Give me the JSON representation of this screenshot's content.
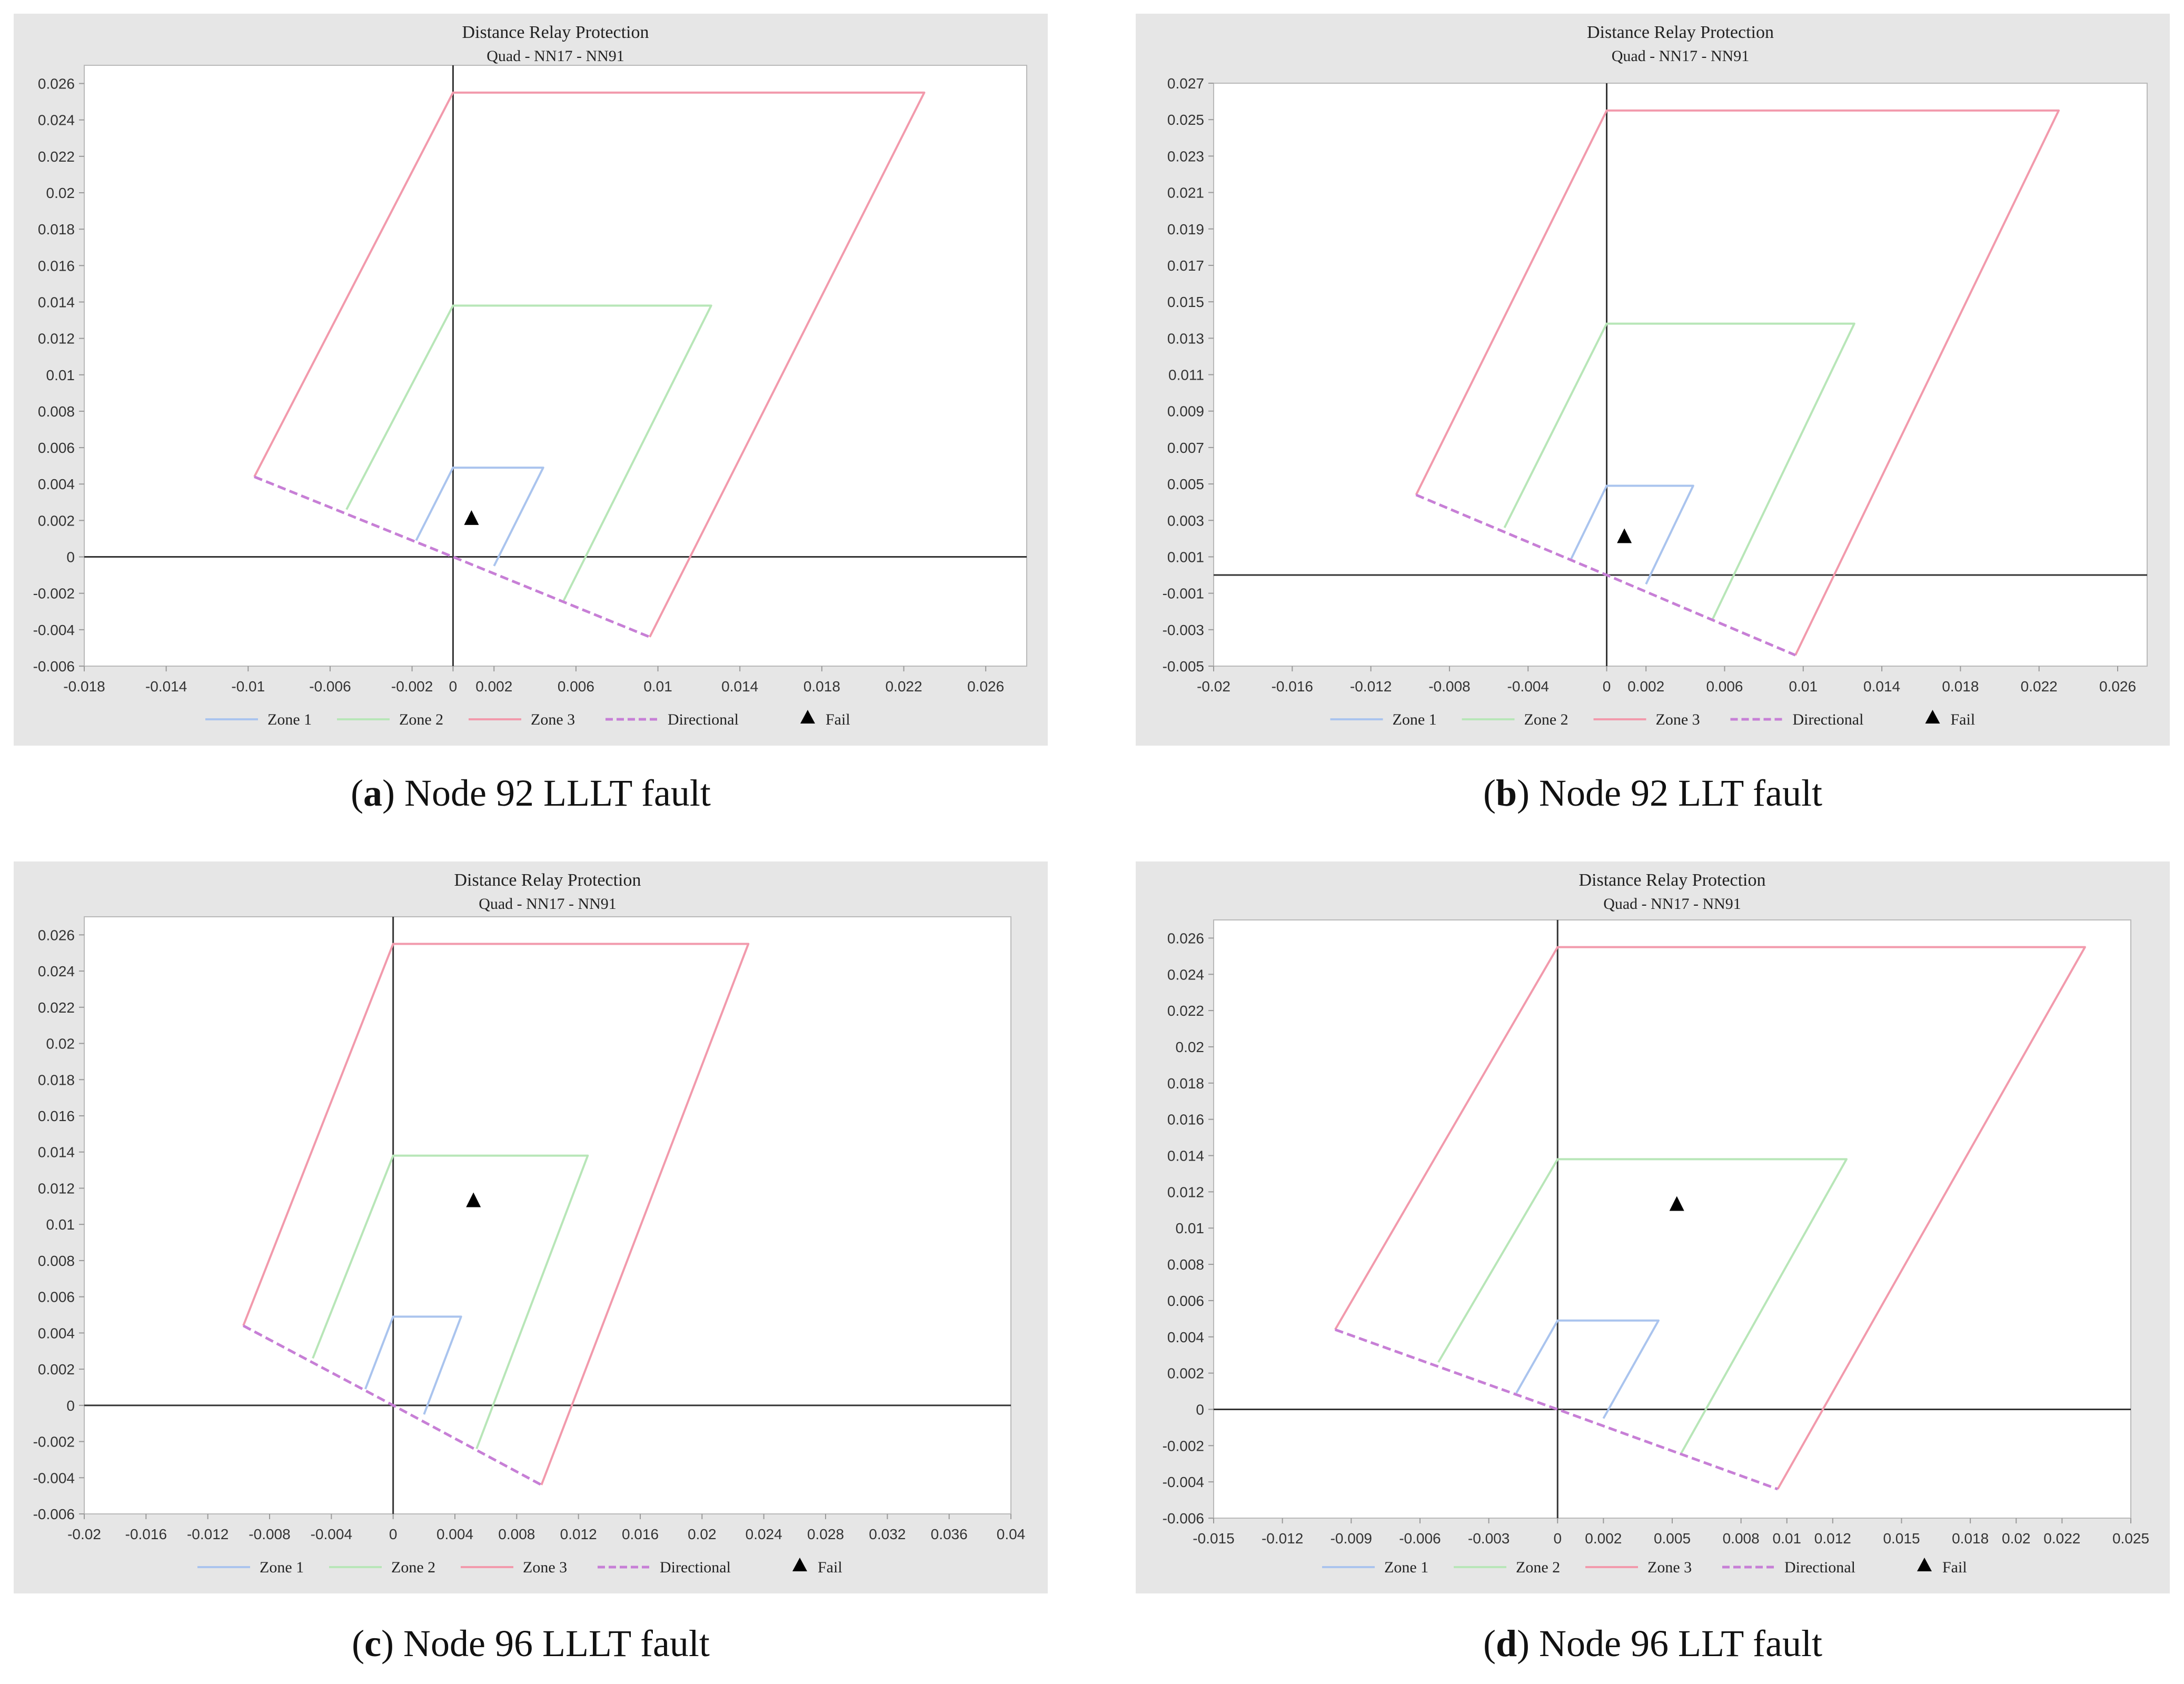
{
  "figure": {
    "panels": [
      {
        "id": "a",
        "caption": {
          "letter": "a",
          "text": "Node 92 LLLT fault"
        },
        "chart_data": {
          "type": "line",
          "title": "Distance Relay Protection",
          "subtitle": "Quad - NN17 - NN91",
          "xlim": [
            -0.018,
            0.028
          ],
          "ylim": [
            -0.006,
            0.027
          ],
          "xticks": [
            -0.018,
            -0.014,
            -0.01,
            -0.006,
            -0.002,
            0,
            0.002,
            0.006,
            0.01,
            0.014,
            0.018,
            0.022,
            0.026
          ],
          "xtick_labels": [
            "-0.018",
            "-0.014",
            "-0.01",
            "-0.006",
            "-0.002",
            "0",
            "0.002",
            "0.006",
            "0.01",
            "0.014",
            "0.018",
            "0.022",
            "0.026"
          ],
          "yticks": [
            0.026,
            0.024,
            0.022,
            0.02,
            0.018,
            0.016,
            0.014,
            0.012,
            0.01,
            0.008,
            0.006,
            0.004,
            0.002,
            0,
            -0.002,
            -0.004,
            -0.006
          ],
          "ytick_labels": [
            "0.026",
            "0.024",
            "0.022",
            "0.02",
            "0.018",
            "0.016",
            "0.014",
            "0.012",
            "0.01",
            "0.008",
            "0.006",
            "0.004",
            "0.002",
            "0",
            "-0.002",
            "-0.004",
            "-0.006"
          ],
          "grid": false,
          "legend_position": "bottom",
          "series": [
            {
              "name": "Zone 1",
              "style": "solid",
              "color": "#aac4ee",
              "x": [
                -0.0018,
                0,
                0.0044,
                0.002
              ],
              "y": [
                0.0009,
                0.0049,
                0.0049,
                -0.0005
              ]
            },
            {
              "name": "Zone 2",
              "style": "solid",
              "color": "#b8e6b8",
              "x": [
                -0.0052,
                0,
                0.0126,
                0.0054
              ],
              "y": [
                0.0026,
                0.0138,
                0.0138,
                -0.0024
              ]
            },
            {
              "name": "Zone 3",
              "style": "solid",
              "color": "#f29aac",
              "x": [
                -0.0097,
                0,
                0.023,
                0.0096
              ],
              "y": [
                0.0044,
                0.0255,
                0.0255,
                -0.0044
              ]
            },
            {
              "name": "Directional",
              "style": "dashed",
              "color": "#c77fd6",
              "x": [
                -0.0097,
                0,
                0.0096
              ],
              "y": [
                0.0044,
                0,
                -0.0044
              ]
            }
          ],
          "markers": [
            {
              "name": "Fail",
              "x": 0.0009,
              "y": 0.0021
            }
          ]
        }
      },
      {
        "id": "b",
        "caption": {
          "letter": "b",
          "text": "Node 92 LLT fault"
        },
        "chart_data": {
          "type": "line",
          "title": "Distance Relay Protection",
          "subtitle": "Quad - NN17 - NN91",
          "xlim": [
            -0.02,
            0.0275
          ],
          "ylim": [
            -0.005,
            0.027
          ],
          "xticks": [
            -0.02,
            -0.016,
            -0.012,
            -0.008,
            -0.004,
            0,
            0.002,
            0.006,
            0.01,
            0.014,
            0.018,
            0.022,
            0.026
          ],
          "xtick_labels": [
            "-0.02",
            "-0.016",
            "-0.012",
            "-0.008",
            "-0.004",
            "0",
            "0.002",
            "0.006",
            "0.01",
            "0.014",
            "0.018",
            "0.022",
            "0.026"
          ],
          "yticks": [
            0.027,
            0.025,
            0.023,
            0.021,
            0.019,
            0.017,
            0.015,
            0.013,
            0.011,
            0.009,
            0.007,
            0.005,
            0.003,
            0.001,
            -0.001,
            -0.003,
            -0.005
          ],
          "ytick_labels": [
            "0.027",
            "0.025",
            "0.023",
            "0.021",
            "0.019",
            "0.017",
            "0.015",
            "0.013",
            "0.011",
            "0.009",
            "0.007",
            "0.005",
            "0.003",
            "0.001",
            "-0.001",
            "-0.003",
            "-0.005"
          ],
          "grid": false,
          "legend_position": "bottom",
          "series": [
            {
              "name": "Zone 1",
              "style": "solid",
              "color": "#aac4ee",
              "x": [
                -0.0018,
                0,
                0.0044,
                0.002
              ],
              "y": [
                0.0009,
                0.0049,
                0.0049,
                -0.0005
              ]
            },
            {
              "name": "Zone 2",
              "style": "solid",
              "color": "#b8e6b8",
              "x": [
                -0.0052,
                0,
                0.0126,
                0.0054
              ],
              "y": [
                0.0026,
                0.0138,
                0.0138,
                -0.0024
              ]
            },
            {
              "name": "Zone 3",
              "style": "solid",
              "color": "#f29aac",
              "x": [
                -0.0097,
                0,
                0.023,
                0.0096
              ],
              "y": [
                0.0044,
                0.0255,
                0.0255,
                -0.0044
              ]
            },
            {
              "name": "Directional",
              "style": "dashed",
              "color": "#c77fd6",
              "x": [
                -0.0097,
                0,
                0.0096
              ],
              "y": [
                0.0044,
                0,
                -0.0044
              ]
            }
          ],
          "markers": [
            {
              "name": "Fail",
              "x": 0.0009,
              "y": 0.0021
            }
          ]
        }
      },
      {
        "id": "c",
        "caption": {
          "letter": "c",
          "text": "Node 96 LLLT fault"
        },
        "chart_data": {
          "type": "line",
          "title": "Distance Relay Protection",
          "subtitle": "Quad - NN17 - NN91",
          "xlim": [
            -0.02,
            0.04
          ],
          "ylim": [
            -0.006,
            0.027
          ],
          "xticks": [
            -0.02,
            -0.016,
            -0.012,
            -0.008,
            -0.004,
            0,
            0.004,
            0.008,
            0.012,
            0.016,
            0.02,
            0.024,
            0.028,
            0.032,
            0.036,
            0.04
          ],
          "xtick_labels": [
            "-0.02",
            "-0.016",
            "-0.012",
            "-0.008",
            "-0.004",
            "0",
            "0.004",
            "0.008",
            "0.012",
            "0.016",
            "0.02",
            "0.024",
            "0.028",
            "0.032",
            "0.036",
            "0.04"
          ],
          "yticks": [
            0.026,
            0.024,
            0.022,
            0.02,
            0.018,
            0.016,
            0.014,
            0.012,
            0.01,
            0.008,
            0.006,
            0.004,
            0.002,
            0,
            -0.002,
            -0.004,
            -0.006
          ],
          "ytick_labels": [
            "0.026",
            "0.024",
            "0.022",
            "0.02",
            "0.018",
            "0.016",
            "0.014",
            "0.012",
            "0.01",
            "0.008",
            "0.006",
            "0.004",
            "0.002",
            "0",
            "-0.002",
            "-0.004",
            "-0.006"
          ],
          "grid": false,
          "legend_position": "bottom",
          "series": [
            {
              "name": "Zone 1",
              "style": "solid",
              "color": "#aac4ee",
              "x": [
                -0.0018,
                0,
                0.0044,
                0.002
              ],
              "y": [
                0.0009,
                0.0049,
                0.0049,
                -0.0005
              ]
            },
            {
              "name": "Zone 2",
              "style": "solid",
              "color": "#b8e6b8",
              "x": [
                -0.0052,
                0,
                0.0126,
                0.0054
              ],
              "y": [
                0.0026,
                0.0138,
                0.0138,
                -0.0024
              ]
            },
            {
              "name": "Zone 3",
              "style": "solid",
              "color": "#f29aac",
              "x": [
                -0.0097,
                0,
                0.023,
                0.0096
              ],
              "y": [
                0.0044,
                0.0255,
                0.0255,
                -0.0044
              ]
            },
            {
              "name": "Directional",
              "style": "dashed",
              "color": "#c77fd6",
              "x": [
                -0.0097,
                0,
                0.0096
              ],
              "y": [
                0.0044,
                0,
                -0.0044
              ]
            }
          ],
          "markers": [
            {
              "name": "Fail",
              "x": 0.0052,
              "y": 0.0113
            }
          ]
        }
      },
      {
        "id": "d",
        "caption": {
          "letter": "d",
          "text": "Node 96 LLT fault"
        },
        "chart_data": {
          "type": "line",
          "title": "Distance Relay Protection",
          "subtitle": "Quad - NN17 - NN91",
          "xlim": [
            -0.015,
            0.025
          ],
          "ylim": [
            -0.006,
            0.027
          ],
          "xticks": [
            -0.015,
            -0.012,
            -0.009,
            -0.006,
            -0.003,
            0,
            0.002,
            0.005,
            0.008,
            0.01,
            0.012,
            0.015,
            0.018,
            0.02,
            0.022,
            0.025
          ],
          "xtick_labels": [
            "-0.015",
            "-0.012",
            "-0.009",
            "-0.006",
            "-0.003",
            "0",
            "0.002",
            "0.005",
            "0.008",
            "0.01",
            "0.012",
            "0.015",
            "0.018",
            "0.02",
            "0.022",
            "0.025"
          ],
          "yticks": [
            0.026,
            0.024,
            0.022,
            0.02,
            0.018,
            0.016,
            0.014,
            0.012,
            0.01,
            0.008,
            0.006,
            0.004,
            0.002,
            0,
            -0.002,
            -0.004,
            -0.006
          ],
          "ytick_labels": [
            "0.026",
            "0.024",
            "0.022",
            "0.02",
            "0.018",
            "0.016",
            "0.014",
            "0.012",
            "0.01",
            "0.008",
            "0.006",
            "0.004",
            "0.002",
            "0",
            "-0.002",
            "-0.004",
            "-0.006"
          ],
          "grid": false,
          "legend_position": "bottom",
          "series": [
            {
              "name": "Zone 1",
              "style": "solid",
              "color": "#aac4ee",
              "x": [
                -0.0018,
                0,
                0.0044,
                0.002
              ],
              "y": [
                0.0009,
                0.0049,
                0.0049,
                -0.0005
              ]
            },
            {
              "name": "Zone 2",
              "style": "solid",
              "color": "#b8e6b8",
              "x": [
                -0.0052,
                0,
                0.0126,
                0.0054
              ],
              "y": [
                0.0026,
                0.0138,
                0.0138,
                -0.0024
              ]
            },
            {
              "name": "Zone 3",
              "style": "solid",
              "color": "#f29aac",
              "x": [
                -0.0097,
                0,
                0.023,
                0.0096
              ],
              "y": [
                0.0044,
                0.0255,
                0.0255,
                -0.0044
              ]
            },
            {
              "name": "Directional",
              "style": "dashed",
              "color": "#c77fd6",
              "x": [
                -0.0097,
                0,
                0.0096
              ],
              "y": [
                0.0044,
                0,
                -0.0044
              ]
            }
          ],
          "markers": [
            {
              "name": "Fail",
              "x": 0.0052,
              "y": 0.0113
            }
          ]
        }
      }
    ]
  }
}
